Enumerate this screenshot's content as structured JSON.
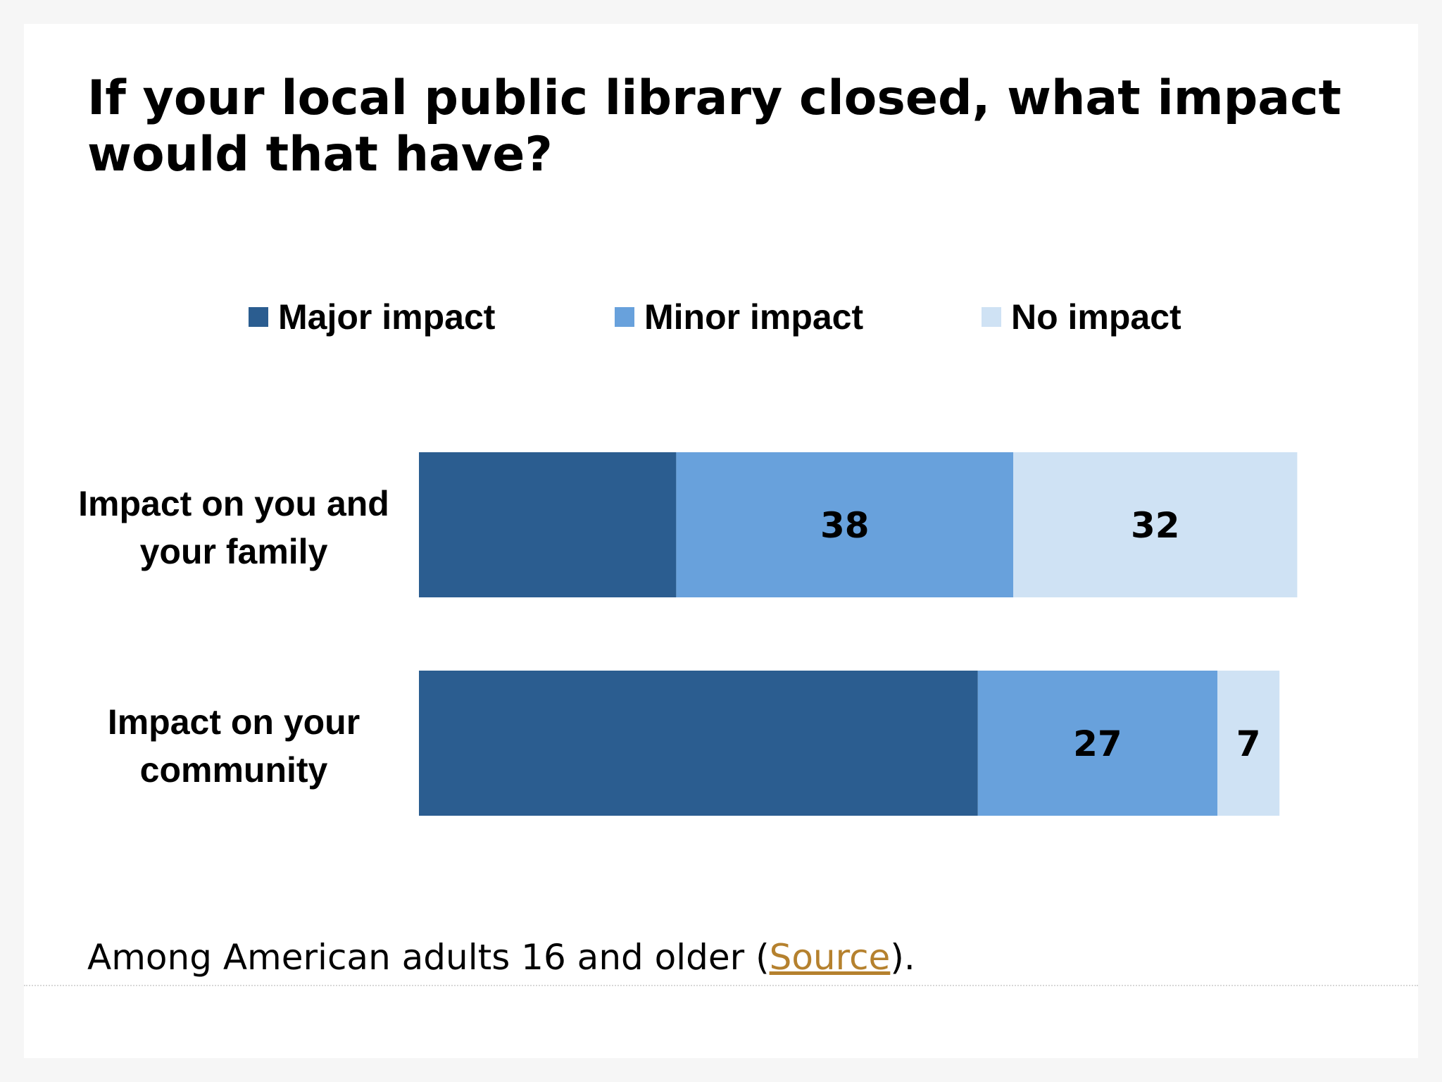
{
  "chart_data": {
    "type": "bar",
    "orientation": "horizontal",
    "stacked": true,
    "title": "If your local public library closed, what impact would that have?",
    "categories": [
      "Impact on you and your family",
      "Impact on your community"
    ],
    "series": [
      {
        "name": "Major impact",
        "values": [
          29,
          63
        ],
        "color": "#2b5d90",
        "show_labels": false
      },
      {
        "name": "Minor impact",
        "values": [
          38,
          27
        ],
        "color": "#68a1dc",
        "show_labels": true
      },
      {
        "name": "No impact",
        "values": [
          32,
          7
        ],
        "color": "#cfe2f4",
        "show_labels": true
      }
    ],
    "xlim": [
      0,
      100
    ],
    "grid": false,
    "legend_position": "top"
  },
  "footnote": {
    "before": "Among American adults 16 and older (",
    "link": "Source",
    "after": ")."
  }
}
